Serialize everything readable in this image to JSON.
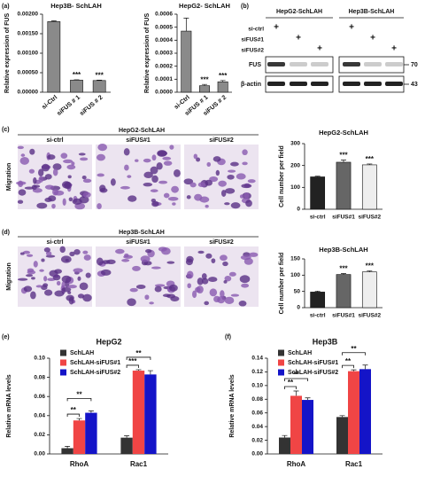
{
  "panel_labels": [
    "(a)",
    "(b)",
    "(c)",
    "(d)",
    "(e)",
    "(f)"
  ],
  "blot": {
    "groups": [
      "HepG2-SchLAH",
      "Hep3B-SchLAH"
    ],
    "conditions": [
      "si-ctrl",
      "siFUS#1",
      "siFUS#2"
    ],
    "lane_marks": [
      "+",
      "+",
      "+",
      "+",
      "+",
      "+"
    ],
    "proteins": [
      "FUS",
      "β-actin"
    ],
    "markers": [
      70,
      43
    ]
  },
  "migration": [
    {
      "title": "HepG2-SchLAH",
      "columns": [
        "si-ctrl",
        "siFUS#1",
        "siFUS#2"
      ],
      "row_label": "Migration"
    },
    {
      "title": "Hep3B-SchLAH",
      "columns": [
        "si-ctrl",
        "siFUS#1",
        "siFUS#2"
      ],
      "row_label": "Migration"
    }
  ],
  "chart_data": [
    {
      "type": "bar",
      "title": "Hep3B- SchLAH",
      "ylabel": "Relative expression of FUS",
      "categories": [
        "si-Ctrl",
        "siFUS # 1",
        "siFUS # 2"
      ],
      "values": [
        0.00181,
        0.00031,
        0.0003
      ],
      "errors": [
        2e-05,
        1e-05,
        1e-05
      ],
      "colors": [
        "#8a8a8a",
        "#8a8a8a",
        "#8a8a8a"
      ],
      "annotations": [
        "***",
        "***"
      ],
      "ylim": [
        0,
        0.002
      ],
      "yticks": [
        {
          "value": 0,
          "label": "0.00000"
        },
        {
          "value": 0.0005,
          "label": "0.00050"
        },
        {
          "value": 0.001,
          "label": "0.00100"
        },
        {
          "value": 0.0015,
          "label": "0.00150"
        },
        {
          "value": 0.002,
          "label": "0.00200"
        }
      ]
    },
    {
      "type": "bar",
      "title": "HepG2- SchLAH",
      "ylabel": "Relative expression of FUS",
      "categories": [
        "si-Ctrl",
        "siFUS # 1",
        "siFUS # 2"
      ],
      "values": [
        0.00047,
        5e-05,
        8e-05
      ],
      "errors": [
        0.0001,
        1e-05,
        1e-05
      ],
      "colors": [
        "#8a8a8a",
        "#8a8a8a",
        "#8a8a8a"
      ],
      "annotations": [
        "***",
        "***"
      ],
      "ylim": [
        0,
        0.0006
      ],
      "yticks": [
        {
          "value": 0,
          "label": "0.0000"
        },
        {
          "value": 0.0001,
          "label": "0.0001"
        },
        {
          "value": 0.0002,
          "label": "0.0002"
        },
        {
          "value": 0.0003,
          "label": "0.0003"
        },
        {
          "value": 0.0004,
          "label": "0.0004"
        },
        {
          "value": 0.0005,
          "label": "0.0005"
        },
        {
          "value": 0.0006,
          "label": "0.0006"
        }
      ]
    },
    {
      "type": "bar",
      "title": "HepG2-SchLAH",
      "ylabel": "Cell number per field",
      "categories": [
        "si-ctrl",
        "siFUS#1",
        "siFUS#2"
      ],
      "values": [
        148,
        215,
        203
      ],
      "errors": [
        3,
        10,
        4
      ],
      "colors": [
        "#222222",
        "#666666",
        "#eeeeee"
      ],
      "annotations": [
        "***",
        "***"
      ],
      "ylim": [
        0,
        300
      ],
      "yticks": [
        0,
        100,
        200,
        300
      ]
    },
    {
      "type": "bar",
      "title": "Hep3B-SchLAH",
      "ylabel": "Cell number per field",
      "categories": [
        "si-ctrl",
        "siFUS#1",
        "siFUS#2"
      ],
      "values": [
        48,
        102,
        110
      ],
      "errors": [
        3,
        3,
        3
      ],
      "colors": [
        "#222222",
        "#666666",
        "#eeeeee"
      ],
      "annotations": [
        "***",
        "***"
      ],
      "ylim": [
        0,
        150
      ],
      "yticks": [
        0,
        50,
        100,
        150
      ]
    },
    {
      "type": "grouped_bar",
      "title": "HepG2",
      "ylabel": "Relative mRNA levels",
      "categories": [
        "RhoA",
        "Rac1"
      ],
      "series": [
        {
          "name": "SchLAH",
          "color": "#333333",
          "values": [
            0.006,
            0.017
          ],
          "errors": [
            0.002,
            0.002
          ]
        },
        {
          "name": "SchLAH-siFUS#1",
          "color": "#f04545",
          "values": [
            0.035,
            0.087
          ],
          "errors": [
            0.002,
            0.001
          ]
        },
        {
          "name": "SchLAH-siFUS#2",
          "color": "#1414c8",
          "values": [
            0.043,
            0.083
          ],
          "errors": [
            0.002,
            0.004
          ]
        }
      ],
      "annotations": [
        "**",
        "**",
        "***",
        "**"
      ],
      "ylim": [
        0,
        0.1
      ],
      "yticks": [
        {
          "value": 0,
          "label": "0.00"
        },
        {
          "value": 0.02,
          "label": "0.02"
        },
        {
          "value": 0.04,
          "label": "0.04"
        },
        {
          "value": 0.06,
          "label": "0.06"
        },
        {
          "value": 0.08,
          "label": "0.08"
        },
        {
          "value": 0.1,
          "label": "0.10"
        }
      ]
    },
    {
      "type": "grouped_bar",
      "title": "Hep3B",
      "ylabel": "Relative mRNA levels",
      "categories": [
        "RhoA",
        "Rac1"
      ],
      "series": [
        {
          "name": "SchLAH",
          "color": "#333333",
          "values": [
            0.024,
            0.054
          ],
          "errors": [
            0.003,
            0.002
          ]
        },
        {
          "name": "SchLAH-siFUS#1",
          "color": "#f04545",
          "values": [
            0.085,
            0.121
          ],
          "errors": [
            0.007,
            0.002
          ]
        },
        {
          "name": "SchLAH-siFUS#2",
          "color": "#1414c8",
          "values": [
            0.079,
            0.124
          ],
          "errors": [
            0.003,
            0.006
          ]
        }
      ],
      "annotations": [
        "**",
        "**",
        "**",
        "**"
      ],
      "ylim": [
        0,
        0.14
      ],
      "yticks": [
        {
          "value": 0,
          "label": "0.00"
        },
        {
          "value": 0.02,
          "label": "0.02"
        },
        {
          "value": 0.04,
          "label": "0.04"
        },
        {
          "value": 0.06,
          "label": "0.06"
        },
        {
          "value": 0.08,
          "label": "0.08"
        },
        {
          "value": 0.1,
          "label": "0.10"
        },
        {
          "value": 0.12,
          "label": "0.12"
        },
        {
          "value": 0.14,
          "label": "0.14"
        }
      ]
    }
  ]
}
